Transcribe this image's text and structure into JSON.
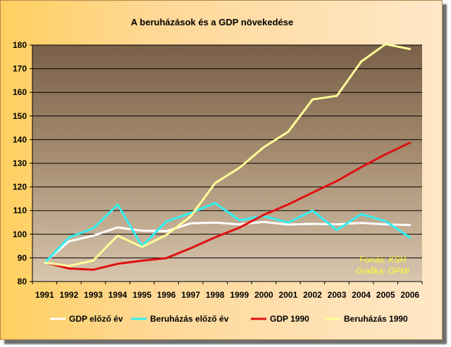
{
  "chart_data": {
    "type": "line",
    "title": "A beruházások és a GDP növekedése",
    "xlabel": "",
    "ylabel": "",
    "x": [
      "1991",
      "1992",
      "1993",
      "1994",
      "1995",
      "1996",
      "1997",
      "1998",
      "1999",
      "2000",
      "2001",
      "2002",
      "2003",
      "2004",
      "2005",
      "2006"
    ],
    "ylim": [
      80,
      180
    ],
    "yticks": [
      80,
      90,
      100,
      110,
      120,
      130,
      140,
      150,
      160,
      170,
      180
    ],
    "grid": true,
    "legend_position": "bottom",
    "annotations": [
      "Forrás: KSH",
      "Grafika: OPMI"
    ],
    "series": [
      {
        "name": "GDP előző év",
        "color": "#ffffff",
        "values": [
          88.1,
          97.0,
          99.4,
          102.9,
          101.5,
          101.3,
          104.6,
          104.9,
          104.2,
          105.2,
          104.1,
          104.4,
          104.2,
          104.8,
          104.2,
          103.9
        ]
      },
      {
        "name": "Beruházás előző év",
        "color": "#33f0f0",
        "values": [
          87.9,
          98.6,
          102.5,
          112.5,
          95.0,
          105.4,
          109.0,
          113.2,
          105.9,
          107.7,
          104.9,
          110.0,
          101.8,
          108.5,
          105.5,
          98.6
        ]
      },
      {
        "name": "GDP 1990",
        "color": "#e01010",
        "values": [
          88.1,
          85.5,
          85.0,
          87.5,
          88.8,
          89.9,
          94.1,
          98.7,
          102.8,
          108.2,
          112.6,
          117.6,
          122.5,
          128.4,
          133.8,
          138.7
        ]
      },
      {
        "name": "Beruházás 1990",
        "color": "#ffff99",
        "values": [
          88.0,
          86.6,
          88.9,
          99.4,
          94.6,
          99.7,
          107.6,
          121.6,
          128.1,
          136.8,
          143.3,
          157.0,
          158.5,
          173.0,
          180.4,
          178.3
        ]
      }
    ]
  }
}
